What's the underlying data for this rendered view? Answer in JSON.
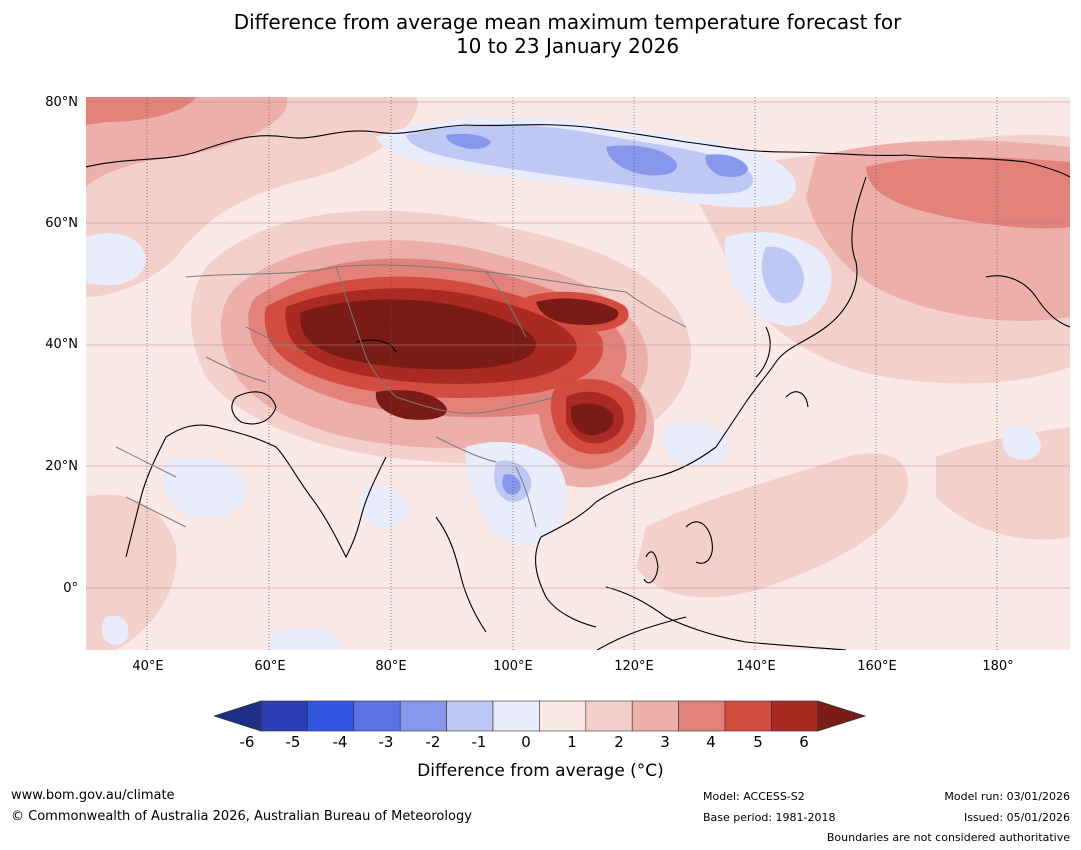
{
  "title_line1": "Difference from average mean maximum temperature forecast for",
  "title_line2": "10 to 23 January 2026",
  "map": {
    "lat_labels": [
      "80°N",
      "60°N",
      "40°N",
      "20°N",
      "0°"
    ],
    "lon_labels": [
      "40°E",
      "60°E",
      "80°E",
      "100°E",
      "120°E",
      "140°E",
      "160°E",
      "180°"
    ],
    "extent": {
      "lon": [
        30,
        190
      ],
      "lat": [
        -10,
        80
      ]
    }
  },
  "legend": {
    "ticks": [
      "-6",
      "-5",
      "-4",
      "-3",
      "-2",
      "-1",
      "0",
      "1",
      "2",
      "3",
      "4",
      "5",
      "6"
    ],
    "title": "Difference from average (°C)",
    "colors": [
      "#1f2f87",
      "#2a3db2",
      "#3355e0",
      "#5a72e4",
      "#8797ec",
      "#bfc7f4",
      "#e8ecfb",
      "#fbe9e7",
      "#f4d0cd",
      "#ecafaa",
      "#e3817b",
      "#d44b40",
      "#a92a23",
      "#7a1b16"
    ]
  },
  "footer": {
    "website": "www.bom.gov.au/climate",
    "copyright": "© Commonwealth of Australia 2026, Australian Bureau of Meteorology",
    "model": "Model: ACCESS-S2",
    "base_period": "Base period: 1981-2018",
    "model_run": "Model run: 03/01/2026",
    "issued": "Issued: 05/01/2026",
    "boundaries": "Boundaries are not considered authoritative"
  }
}
